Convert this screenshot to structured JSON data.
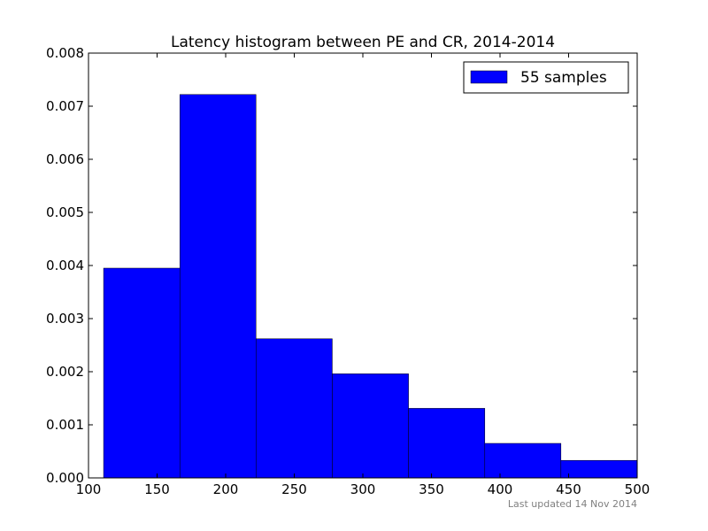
{
  "chart_data": {
    "type": "bar",
    "title": "Latency histogram between PE and CR, 2014-2014",
    "bins": [
      {
        "x0": 111,
        "x1": 166.6,
        "density": 0.00395
      },
      {
        "x0": 166.6,
        "x1": 222.1,
        "density": 0.00722
      },
      {
        "x0": 222.1,
        "x1": 277.7,
        "density": 0.00262
      },
      {
        "x0": 277.7,
        "x1": 333.3,
        "density": 0.00196
      },
      {
        "x0": 333.3,
        "x1": 388.9,
        "density": 0.00131
      },
      {
        "x0": 388.9,
        "x1": 444.4,
        "density": 0.00065
      },
      {
        "x0": 444.4,
        "x1": 500,
        "density": 0.00033
      }
    ],
    "xlim": [
      100,
      500
    ],
    "ylim": [
      0,
      0.008
    ],
    "xticks": [
      "100",
      "150",
      "200",
      "250",
      "300",
      "350",
      "400",
      "450",
      "500"
    ],
    "yticks": [
      "0.000",
      "0.001",
      "0.002",
      "0.003",
      "0.004",
      "0.005",
      "0.006",
      "0.007",
      "0.008"
    ],
    "xlabel": "",
    "ylabel": "",
    "grid": false,
    "legend": {
      "placement": "top-right",
      "label": "55 samples"
    },
    "bar_color": "#0000ff"
  },
  "footer": {
    "text": "Last updated 14 Nov 2014"
  }
}
